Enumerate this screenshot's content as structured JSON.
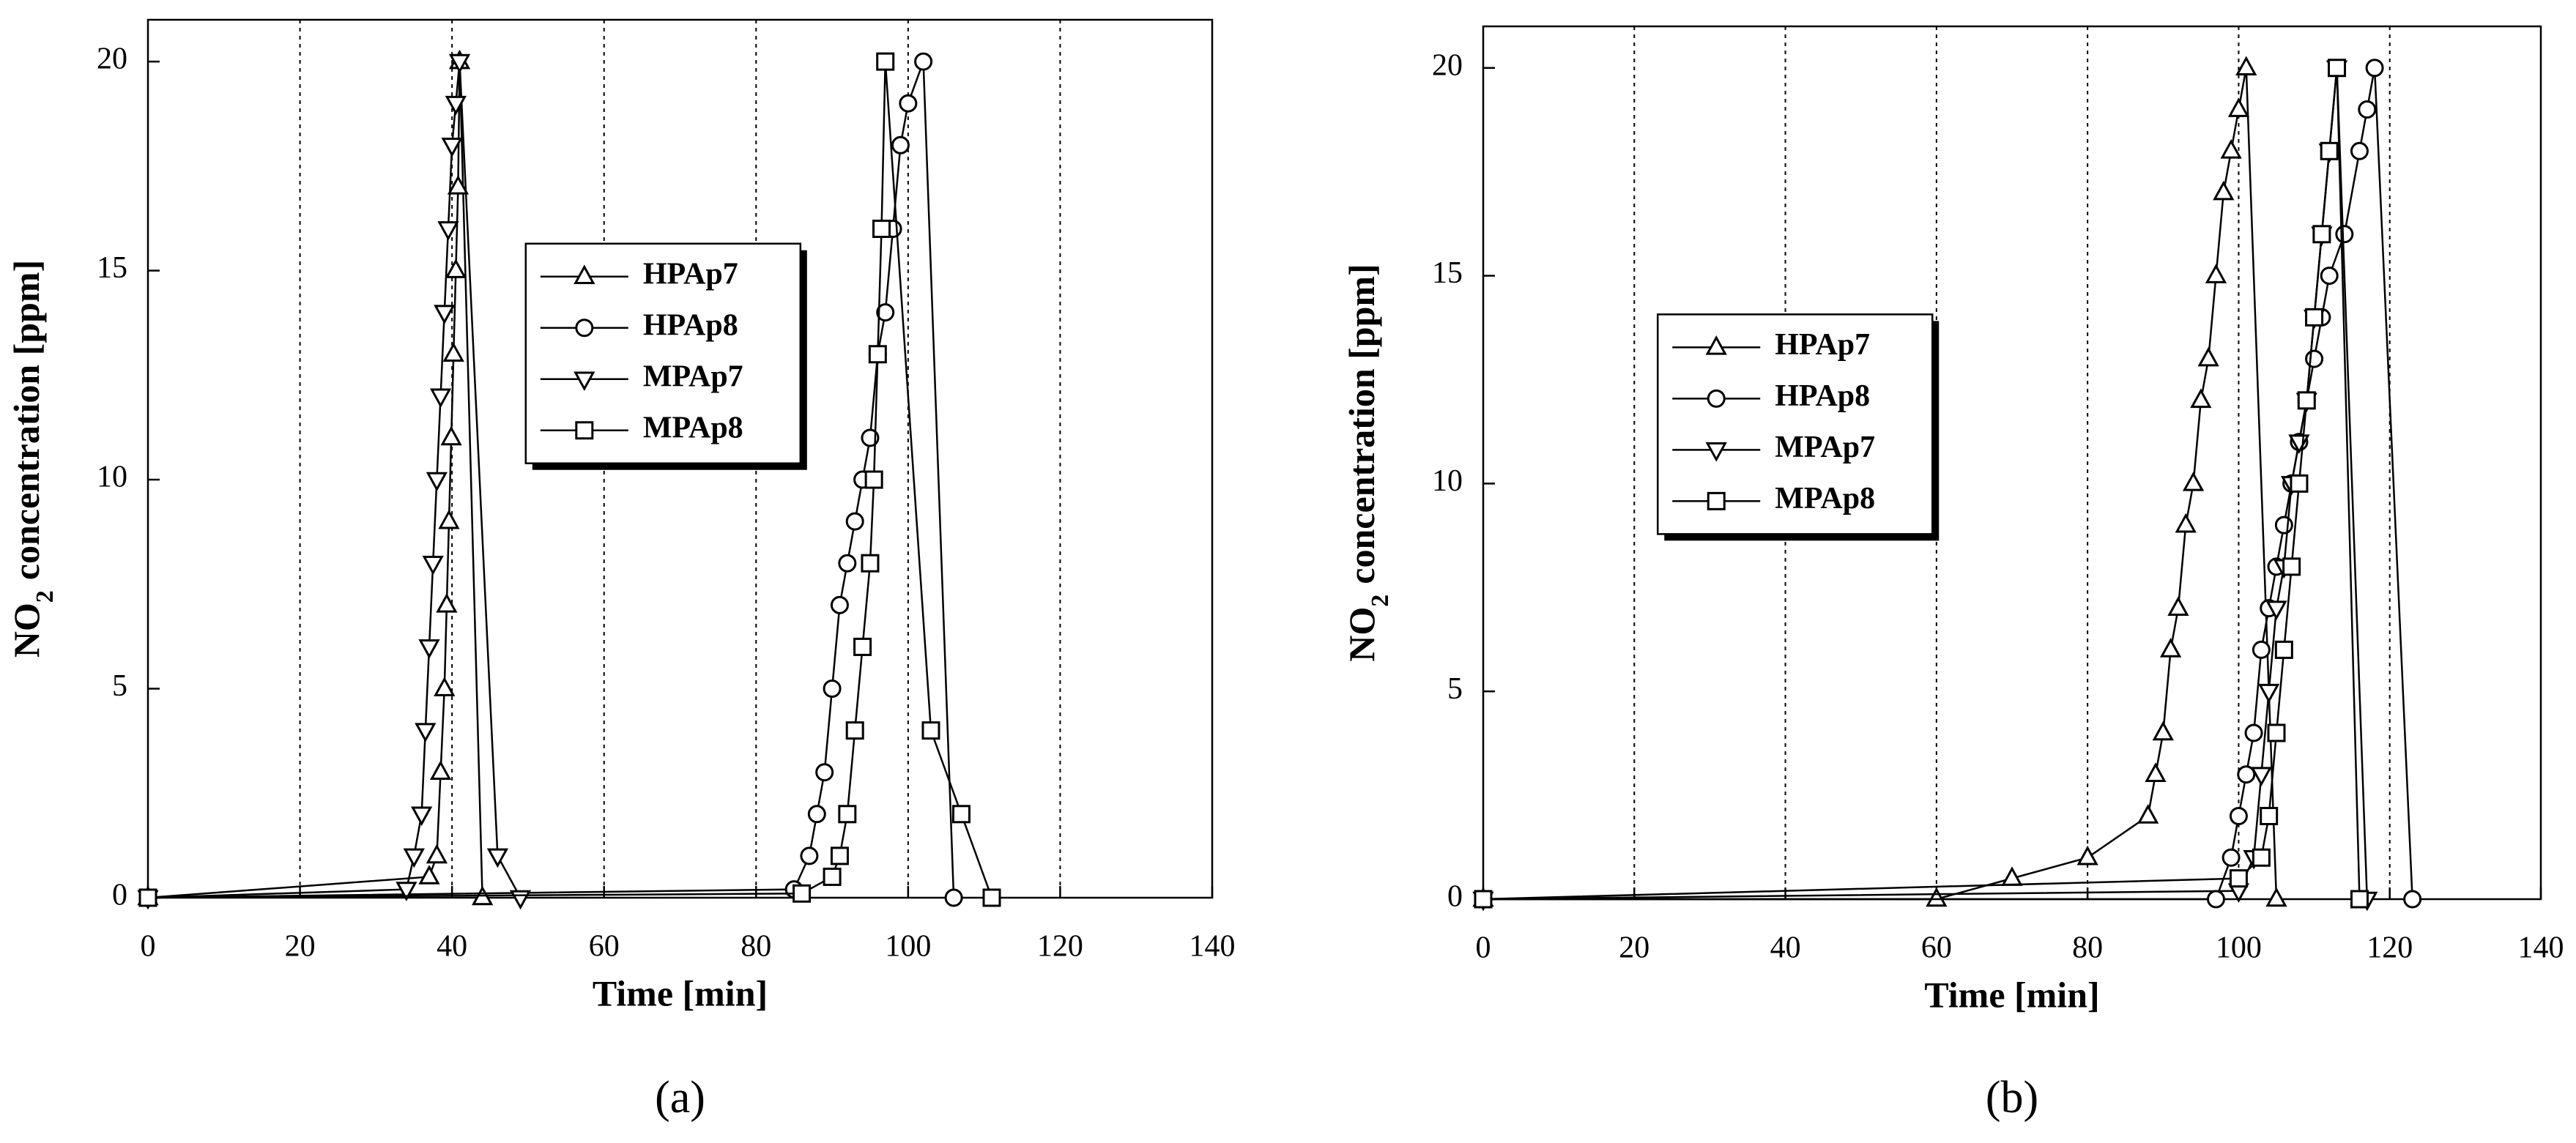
{
  "chart_data": [
    {
      "type": "line",
      "panel_label": "(a)",
      "xlabel": "Time [min]",
      "ylabel": "NO",
      "ylabel_sub": "2",
      "ylabel_rest": "concentration [ppm]",
      "xlim": [
        0,
        140
      ],
      "ylim": [
        0,
        21
      ],
      "xticks": [
        0,
        20,
        40,
        60,
        80,
        100,
        120,
        140
      ],
      "yticks": [
        0,
        5,
        10,
        15,
        20
      ],
      "grid": true,
      "legend": "upper center",
      "series": [
        {
          "name": "HPAp7",
          "color": "#000000",
          "marker": "triangle-up",
          "x": [
            0,
            37,
            38,
            38.5,
            39,
            39.3,
            39.6,
            39.9,
            40.2,
            40.5,
            40.8,
            41,
            44
          ],
          "values": [
            0,
            0.5,
            1,
            3,
            5,
            7,
            9,
            11,
            13,
            15,
            17,
            20,
            0
          ]
        },
        {
          "name": "HPAp8",
          "color": "#000000",
          "marker": "circle",
          "x": [
            0,
            85,
            87,
            88,
            89,
            90,
            91,
            92,
            93,
            94,
            95,
            96,
            97,
            98,
            99,
            100,
            102,
            106
          ],
          "values": [
            0,
            0.2,
            1,
            2,
            3,
            5,
            7,
            8,
            9,
            10,
            11,
            13,
            14,
            16,
            18,
            19,
            20,
            0
          ]
        },
        {
          "name": "MPAp7",
          "color": "#000000",
          "marker": "triangle-down",
          "x": [
            0,
            34,
            35,
            36,
            36.5,
            37,
            37.5,
            38,
            38.5,
            39,
            39.5,
            40,
            40.5,
            41,
            46,
            49
          ],
          "values": [
            0,
            0.2,
            1,
            2,
            4,
            6,
            8,
            10,
            12,
            14,
            16,
            18,
            19,
            20,
            1,
            0
          ]
        },
        {
          "name": "MPAp8",
          "color": "#000000",
          "marker": "square",
          "x": [
            0,
            86,
            90,
            91,
            92,
            93,
            94,
            95,
            95.5,
            96,
            96.5,
            97,
            103,
            107,
            111
          ],
          "values": [
            0,
            0.1,
            0.5,
            1,
            2,
            4,
            6,
            8,
            10,
            13,
            16,
            20,
            4,
            2,
            0
          ]
        }
      ]
    },
    {
      "type": "line",
      "panel_label": "(b)",
      "xlabel": "Time [min]",
      "ylabel": "NO",
      "ylabel_sub": "2",
      "ylabel_rest": "concentration [ppm]",
      "xlim": [
        0,
        140
      ],
      "ylim": [
        0,
        21
      ],
      "xticks": [
        0,
        20,
        40,
        60,
        80,
        100,
        120,
        140
      ],
      "yticks": [
        0,
        5,
        10,
        15,
        20
      ],
      "grid": true,
      "legend": "center left",
      "series": [
        {
          "name": "HPAp7",
          "color": "#000000",
          "marker": "triangle-up",
          "x": [
            0,
            60,
            70,
            80,
            88,
            89,
            90,
            91,
            92,
            93,
            94,
            95,
            96,
            97,
            98,
            99,
            100,
            101,
            105
          ],
          "values": [
            0,
            0,
            0.5,
            1,
            2,
            3,
            4,
            6,
            7,
            9,
            10,
            12,
            13,
            15,
            17,
            18,
            19,
            20,
            0
          ]
        },
        {
          "name": "HPAp8",
          "color": "#000000",
          "marker": "circle",
          "x": [
            0,
            97,
            99,
            100,
            101,
            102,
            103,
            104,
            105,
            106,
            107,
            108,
            109,
            110,
            111,
            112,
            114,
            116,
            117,
            118,
            123
          ],
          "values": [
            0,
            0,
            1,
            2,
            3,
            4,
            6,
            7,
            8,
            9,
            10,
            11,
            12,
            13,
            14,
            15,
            16,
            18,
            19,
            20,
            0
          ]
        },
        {
          "name": "MPAp7",
          "color": "#000000",
          "marker": "triangle-down",
          "x": [
            0,
            100,
            102,
            103,
            104,
            105,
            106,
            107,
            108,
            109,
            110,
            111,
            112,
            113,
            117
          ],
          "values": [
            0,
            0.2,
            1,
            3,
            5,
            7,
            8,
            10,
            11,
            12,
            14,
            16,
            18,
            20,
            0
          ]
        },
        {
          "name": "MPAp8",
          "color": "#000000",
          "marker": "square",
          "x": [
            0,
            100,
            103,
            104,
            105,
            106,
            107,
            108,
            109,
            110,
            111,
            112,
            113,
            116
          ],
          "values": [
            0,
            0.5,
            1,
            2,
            4,
            6,
            8,
            10,
            12,
            14,
            16,
            18,
            20,
            0
          ]
        }
      ]
    }
  ]
}
